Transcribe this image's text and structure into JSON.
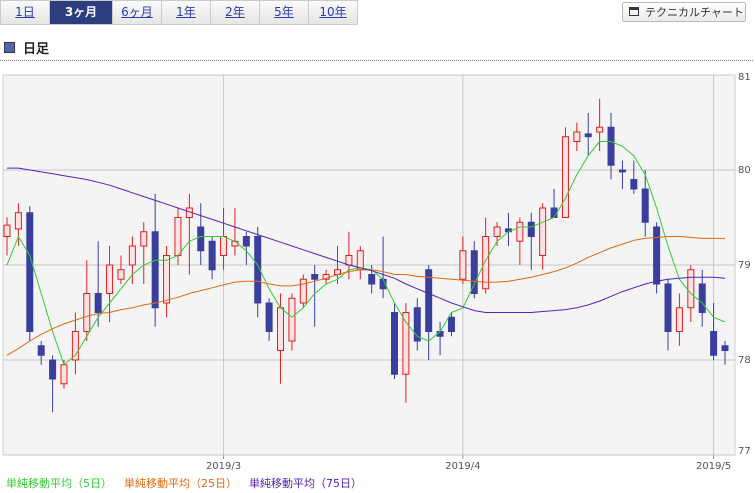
{
  "tabs": [
    {
      "label": "1日",
      "selected": false
    },
    {
      "label": "3ヶ月",
      "selected": true
    },
    {
      "label": "6ヶ月",
      "selected": false
    },
    {
      "label": "1年",
      "selected": false
    },
    {
      "label": "2年",
      "selected": false
    },
    {
      "label": "5年",
      "selected": false
    },
    {
      "label": "10年",
      "selected": false
    }
  ],
  "button": "テクニカルチャート",
  "section_title": "日足",
  "chart_data": {
    "type": "candlestick",
    "categories": [
      null,
      null,
      null,
      null,
      null,
      null,
      null,
      null,
      null,
      null,
      null,
      null,
      null,
      null,
      null,
      null,
      null,
      null,
      null,
      "2019/3",
      null,
      null,
      null,
      null,
      null,
      null,
      null,
      null,
      null,
      null,
      null,
      null,
      null,
      null,
      null,
      null,
      null,
      null,
      null,
      null,
      "2019/4",
      null,
      null,
      null,
      null,
      null,
      null,
      null,
      null,
      null,
      null,
      null,
      null,
      null,
      null,
      null,
      null,
      null,
      null,
      null,
      null,
      null,
      "2019/5",
      null
    ],
    "open": [
      79.3,
      79.38,
      79.55,
      78.15,
      78.0,
      77.75,
      78.0,
      78.3,
      78.7,
      78.7,
      78.85,
      79.0,
      79.2,
      79.35,
      78.6,
      79.1,
      79.5,
      79.4,
      79.25,
      79.1,
      79.2,
      79.3,
      79.3,
      78.6,
      78.1,
      78.2,
      78.6,
      78.9,
      78.85,
      78.9,
      79.0,
      78.95,
      78.9,
      78.85,
      78.5,
      77.85,
      78.55,
      78.95,
      78.3,
      78.45,
      78.85,
      79.15,
      78.75,
      79.3,
      79.38,
      79.25,
      79.45,
      79.1,
      79.6,
      79.5,
      80.3,
      80.38,
      80.4,
      80.45,
      80.0,
      79.9,
      79.8,
      79.4,
      78.8,
      78.3,
      78.55,
      78.8,
      78.3,
      78.15
    ],
    "high": [
      79.5,
      79.65,
      79.62,
      78.2,
      78.05,
      78.0,
      78.5,
      79.05,
      79.25,
      79.2,
      79.1,
      79.3,
      79.45,
      79.75,
      79.2,
      79.6,
      79.75,
      79.65,
      79.3,
      79.6,
      79.6,
      79.35,
      79.4,
      78.65,
      78.7,
      78.7,
      78.9,
      79.0,
      78.95,
      79.2,
      79.35,
      79.2,
      79.0,
      79.3,
      78.6,
      78.6,
      78.65,
      79.0,
      78.4,
      78.5,
      79.3,
      79.25,
      79.5,
      79.45,
      79.55,
      79.5,
      79.55,
      79.65,
      79.8,
      80.45,
      80.5,
      80.6,
      80.75,
      80.6,
      80.1,
      80.1,
      80.0,
      79.45,
      78.85,
      78.7,
      79.0,
      78.95,
      78.6,
      78.2
    ],
    "low": [
      79.1,
      79.2,
      78.2,
      77.95,
      77.45,
      77.7,
      77.85,
      78.2,
      78.35,
      78.4,
      78.8,
      78.8,
      78.8,
      78.35,
      78.45,
      79.0,
      78.9,
      79.0,
      78.85,
      78.95,
      79.1,
      79.0,
      78.45,
      78.2,
      77.75,
      78.1,
      78.55,
      78.35,
      78.8,
      78.8,
      78.85,
      78.85,
      78.7,
      78.65,
      77.8,
      77.55,
      78.1,
      78.0,
      78.05,
      78.25,
      78.8,
      78.65,
      78.7,
      79.2,
      79.2,
      79.0,
      78.95,
      78.95,
      79.5,
      79.5,
      80.2,
      80.15,
      80.2,
      79.9,
      79.8,
      79.75,
      79.3,
      78.7,
      78.1,
      78.15,
      78.4,
      78.35,
      78.0,
      77.95
    ],
    "close": [
      79.42,
      79.55,
      78.3,
      78.05,
      77.8,
      77.95,
      78.3,
      78.7,
      78.5,
      79.0,
      78.95,
      79.2,
      79.35,
      78.55,
      79.1,
      79.5,
      79.6,
      79.15,
      78.95,
      79.3,
      79.25,
      79.2,
      78.6,
      78.3,
      78.55,
      78.65,
      78.85,
      78.85,
      78.9,
      78.95,
      79.1,
      79.15,
      78.8,
      78.75,
      77.85,
      78.5,
      78.2,
      78.3,
      78.25,
      78.3,
      79.15,
      78.7,
      79.3,
      79.4,
      79.35,
      79.45,
      79.3,
      79.6,
      79.5,
      80.35,
      80.4,
      80.35,
      80.45,
      80.05,
      79.98,
      79.8,
      79.45,
      78.8,
      78.3,
      78.55,
      78.95,
      78.5,
      78.05,
      78.1
    ],
    "up_color": "#e02020",
    "down_color": "#3a3f9e",
    "series": [
      {
        "name": "単純移動平均（5日）",
        "color": "#33cc33",
        "values": [
          79.0,
          79.3,
          79.1,
          78.7,
          78.3,
          77.95,
          78.05,
          78.25,
          78.45,
          78.6,
          78.75,
          78.9,
          79.0,
          79.05,
          79.05,
          79.1,
          79.25,
          79.3,
          79.3,
          79.3,
          79.25,
          79.15,
          79.0,
          78.75,
          78.55,
          78.45,
          78.55,
          78.7,
          78.8,
          78.85,
          78.95,
          78.97,
          78.95,
          78.85,
          78.6,
          78.4,
          78.25,
          78.2,
          78.3,
          78.5,
          78.55,
          78.8,
          79.05,
          79.25,
          79.35,
          79.4,
          79.4,
          79.45,
          79.5,
          79.7,
          79.95,
          80.15,
          80.3,
          80.3,
          80.25,
          80.15,
          79.95,
          79.6,
          79.2,
          78.85,
          78.7,
          78.6,
          78.45,
          78.4
        ]
      },
      {
        "name": "単純移動平均（25日）",
        "color": "#e06a10",
        "values": [
          78.05,
          78.12,
          78.2,
          78.27,
          78.33,
          78.38,
          78.42,
          78.46,
          78.49,
          78.5,
          78.53,
          78.55,
          78.58,
          78.6,
          78.63,
          78.66,
          78.7,
          78.73,
          78.76,
          78.79,
          78.82,
          78.83,
          78.83,
          78.8,
          78.78,
          78.78,
          78.8,
          78.83,
          78.86,
          78.9,
          78.93,
          78.95,
          78.95,
          78.93,
          78.9,
          78.9,
          78.88,
          78.87,
          78.86,
          78.85,
          78.84,
          78.83,
          78.82,
          78.82,
          78.83,
          78.85,
          78.87,
          78.9,
          78.93,
          78.97,
          79.02,
          79.08,
          79.13,
          79.18,
          79.22,
          79.26,
          79.28,
          79.29,
          79.3,
          79.3,
          79.29,
          79.28,
          79.28,
          79.28
        ]
      },
      {
        "name": "単純移動平均（75日）",
        "color": "#5522bb",
        "values": [
          80.02,
          80.02,
          80.0,
          79.98,
          79.96,
          79.94,
          79.92,
          79.9,
          79.87,
          79.84,
          79.8,
          79.76,
          79.72,
          79.68,
          79.64,
          79.6,
          79.56,
          79.52,
          79.48,
          79.44,
          79.4,
          79.36,
          79.32,
          79.28,
          79.24,
          79.2,
          79.16,
          79.12,
          79.08,
          79.04,
          79.0,
          78.97,
          78.94,
          78.9,
          78.86,
          78.8,
          78.75,
          78.7,
          78.65,
          78.6,
          78.56,
          78.52,
          78.5,
          78.5,
          78.5,
          78.5,
          78.5,
          78.51,
          78.52,
          78.53,
          78.55,
          78.58,
          78.62,
          78.67,
          78.72,
          78.76,
          78.8,
          78.83,
          78.85,
          78.86,
          78.87,
          78.87,
          78.87,
          78.86
        ]
      }
    ],
    "ylim": [
      77,
      81
    ],
    "yticks": [
      77,
      78,
      79,
      80,
      81
    ],
    "grid": true
  }
}
